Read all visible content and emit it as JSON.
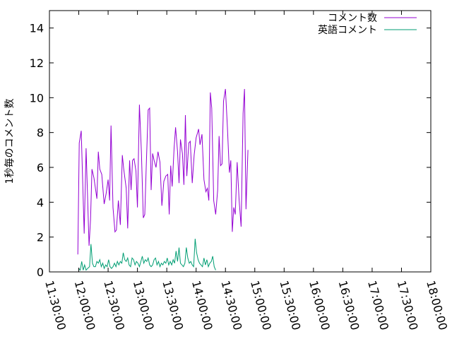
{
  "chart_data": {
    "type": "line",
    "ylabel": "1秒毎のコメント数",
    "xlabel": "",
    "title": "",
    "ylim": [
      0,
      15
    ],
    "xlim": [
      "11:30:00",
      "18:00:00"
    ],
    "yticks": [
      0,
      2,
      4,
      6,
      8,
      10,
      12,
      14
    ],
    "xticks": [
      "11:30:00",
      "12:00:00",
      "12:30:00",
      "13:00:00",
      "13:30:00",
      "14:00:00",
      "14:30:00",
      "15:00:00",
      "15:30:00",
      "16:00:00",
      "16:30:00",
      "17:00:00",
      "17:30:00",
      "18:00:00"
    ],
    "grid": false,
    "legend_position": "top-right",
    "series": [
      {
        "name": "コメント数",
        "color": "#9400d3",
        "points": [
          [
            "11:59:00",
            1.0
          ],
          [
            "12:00:30",
            7.4
          ],
          [
            "12:02:30",
            8.1
          ],
          [
            "12:05:30",
            2.2
          ],
          [
            "12:07:30",
            7.1
          ],
          [
            "12:10:30",
            1.5
          ],
          [
            "12:12:00",
            3.0
          ],
          [
            "12:13:30",
            5.9
          ],
          [
            "12:15:30",
            5.4
          ],
          [
            "12:18:30",
            4.2
          ],
          [
            "12:20:00",
            6.9
          ],
          [
            "12:21:30",
            5.9
          ],
          [
            "12:23:30",
            5.6
          ],
          [
            "12:26:00",
            3.9
          ],
          [
            "12:28:00",
            4.5
          ],
          [
            "12:30:00",
            5.3
          ],
          [
            "12:31:30",
            4.1
          ],
          [
            "12:33:00",
            8.4
          ],
          [
            "12:35:00",
            3.7
          ],
          [
            "12:37:00",
            2.3
          ],
          [
            "12:38:30",
            2.4
          ],
          [
            "12:40:30",
            4.1
          ],
          [
            "12:42:30",
            2.7
          ],
          [
            "12:44:30",
            6.7
          ],
          [
            "12:46:00",
            5.9
          ],
          [
            "12:48:30",
            4.8
          ],
          [
            "12:50:00",
            2.5
          ],
          [
            "12:52:00",
            6.4
          ],
          [
            "12:53:30",
            4.7
          ],
          [
            "12:55:00",
            6.4
          ],
          [
            "12:56:30",
            6.5
          ],
          [
            "12:58:30",
            5.8
          ],
          [
            "13:00:00",
            3.7
          ],
          [
            "13:02:00",
            9.6
          ],
          [
            "13:04:00",
            6.9
          ],
          [
            "13:06:00",
            3.1
          ],
          [
            "13:07:30",
            3.3
          ],
          [
            "13:09:00",
            6.1
          ],
          [
            "13:11:00",
            9.3
          ],
          [
            "13:12:30",
            9.4
          ],
          [
            "13:14:00",
            4.7
          ],
          [
            "13:15:30",
            6.8
          ],
          [
            "13:17:00",
            6.4
          ],
          [
            "13:19:00",
            6.0
          ],
          [
            "13:21:00",
            6.9
          ],
          [
            "13:23:00",
            6.3
          ],
          [
            "13:25:00",
            3.8
          ],
          [
            "13:27:00",
            5.2
          ],
          [
            "13:29:00",
            5.5
          ],
          [
            "13:31:00",
            5.6
          ],
          [
            "13:32:30",
            3.3
          ],
          [
            "13:34:00",
            6.1
          ],
          [
            "13:35:30",
            4.9
          ],
          [
            "13:37:30",
            7.1
          ],
          [
            "13:39:00",
            8.3
          ],
          [
            "13:41:00",
            6.9
          ],
          [
            "13:42:30",
            5.1
          ],
          [
            "13:44:00",
            7.6
          ],
          [
            "13:46:00",
            6.8
          ],
          [
            "13:47:30",
            5.0
          ],
          [
            "13:49:00",
            9.0
          ],
          [
            "13:50:30",
            5.5
          ],
          [
            "13:52:30",
            7.4
          ],
          [
            "13:54:00",
            7.5
          ],
          [
            "13:56:00",
            5.1
          ],
          [
            "13:58:00",
            6.7
          ],
          [
            "14:00:00",
            7.7
          ],
          [
            "14:02:30",
            8.2
          ],
          [
            "14:04:00",
            7.3
          ],
          [
            "14:06:00",
            7.9
          ],
          [
            "14:08:00",
            5.3
          ],
          [
            "14:10:00",
            4.6
          ],
          [
            "14:11:30",
            4.8
          ],
          [
            "14:13:00",
            4.1
          ],
          [
            "14:14:30",
            10.3
          ],
          [
            "14:16:00",
            9.4
          ],
          [
            "14:18:00",
            4.1
          ],
          [
            "14:20:00",
            3.3
          ],
          [
            "14:22:00",
            4.7
          ],
          [
            "14:23:30",
            7.8
          ],
          [
            "14:25:00",
            6.1
          ],
          [
            "14:26:30",
            6.2
          ],
          [
            "14:28:00",
            9.8
          ],
          [
            "14:30:00",
            10.5
          ],
          [
            "14:32:00",
            8.3
          ],
          [
            "14:34:00",
            5.7
          ],
          [
            "14:35:30",
            6.4
          ],
          [
            "14:37:00",
            2.3
          ],
          [
            "14:38:30",
            3.7
          ],
          [
            "14:40:00",
            3.3
          ],
          [
            "14:42:00",
            6.3
          ],
          [
            "14:44:00",
            4.1
          ],
          [
            "14:46:00",
            2.6
          ],
          [
            "14:48:00",
            9.1
          ],
          [
            "14:49:30",
            10.5
          ],
          [
            "14:51:00",
            3.6
          ],
          [
            "14:53:00",
            7.0
          ]
        ]
      },
      {
        "name": "英語コメント",
        "color": "#009e73",
        "points": [
          [
            "12:00:00",
            0.2
          ],
          [
            "12:01:30",
            0.1
          ],
          [
            "12:03:00",
            0.6
          ],
          [
            "12:04:30",
            0.1
          ],
          [
            "12:06:00",
            0.4
          ],
          [
            "12:07:30",
            0.1
          ],
          [
            "12:09:00",
            0.2
          ],
          [
            "12:11:00",
            0.3
          ],
          [
            "12:12:30",
            1.6
          ],
          [
            "12:14:00",
            0.5
          ],
          [
            "12:15:30",
            0.3
          ],
          [
            "12:17:00",
            0.3
          ],
          [
            "12:18:30",
            0.6
          ],
          [
            "12:20:00",
            0.5
          ],
          [
            "12:21:30",
            0.7
          ],
          [
            "12:23:00",
            0.3
          ],
          [
            "12:24:30",
            0.5
          ],
          [
            "12:26:00",
            0.2
          ],
          [
            "12:27:30",
            0.4
          ],
          [
            "12:29:00",
            0.3
          ],
          [
            "12:30:30",
            0.7
          ],
          [
            "12:32:00",
            0.3
          ],
          [
            "12:33:30",
            0.2
          ],
          [
            "12:35:00",
            0.3
          ],
          [
            "12:36:30",
            0.5
          ],
          [
            "12:38:00",
            0.3
          ],
          [
            "12:39:30",
            0.6
          ],
          [
            "12:41:00",
            0.4
          ],
          [
            "12:42:30",
            0.6
          ],
          [
            "12:44:00",
            0.5
          ],
          [
            "12:45:30",
            1.1
          ],
          [
            "12:47:00",
            0.7
          ],
          [
            "12:48:30",
            0.6
          ],
          [
            "12:50:00",
            0.8
          ],
          [
            "12:51:30",
            0.4
          ],
          [
            "12:53:00",
            0.3
          ],
          [
            "12:54:30",
            0.8
          ],
          [
            "12:56:00",
            0.7
          ],
          [
            "12:57:30",
            0.4
          ],
          [
            "12:59:00",
            0.6
          ],
          [
            "13:00:30",
            0.5
          ],
          [
            "13:02:00",
            0.3
          ],
          [
            "13:03:30",
            0.6
          ],
          [
            "13:05:00",
            0.9
          ],
          [
            "13:06:30",
            0.5
          ],
          [
            "13:08:00",
            0.7
          ],
          [
            "13:09:30",
            0.6
          ],
          [
            "13:11:00",
            0.8
          ],
          [
            "13:12:30",
            0.4
          ],
          [
            "13:14:00",
            0.3
          ],
          [
            "13:15:30",
            0.4
          ],
          [
            "13:17:00",
            0.7
          ],
          [
            "13:18:30",
            0.8
          ],
          [
            "13:20:00",
            0.4
          ],
          [
            "13:21:30",
            0.6
          ],
          [
            "13:23:00",
            0.3
          ],
          [
            "13:24:30",
            0.5
          ],
          [
            "13:26:00",
            0.4
          ],
          [
            "13:27:30",
            0.6
          ],
          [
            "13:29:00",
            0.5
          ],
          [
            "13:30:30",
            0.8
          ],
          [
            "13:32:00",
            0.4
          ],
          [
            "13:33:30",
            0.6
          ],
          [
            "13:35:00",
            0.4
          ],
          [
            "13:36:30",
            0.7
          ],
          [
            "13:38:00",
            0.5
          ],
          [
            "13:39:30",
            1.2
          ],
          [
            "13:41:00",
            0.6
          ],
          [
            "13:42:30",
            1.4
          ],
          [
            "13:44:00",
            0.5
          ],
          [
            "13:45:30",
            0.4
          ],
          [
            "13:47:00",
            0.3
          ],
          [
            "13:48:30",
            0.5
          ],
          [
            "13:50:00",
            1.4
          ],
          [
            "13:51:30",
            0.8
          ],
          [
            "13:53:00",
            0.5
          ],
          [
            "13:54:30",
            0.6
          ],
          [
            "13:56:00",
            0.4
          ],
          [
            "13:57:30",
            0.3
          ],
          [
            "13:59:00",
            1.9
          ],
          [
            "14:00:30",
            1.1
          ],
          [
            "14:02:00",
            0.7
          ],
          [
            "14:03:30",
            0.5
          ],
          [
            "14:05:00",
            0.4
          ],
          [
            "14:06:30",
            0.3
          ],
          [
            "14:08:00",
            0.8
          ],
          [
            "14:09:30",
            0.4
          ],
          [
            "14:11:00",
            0.7
          ],
          [
            "14:12:30",
            0.3
          ],
          [
            "14:14:00",
            0.5
          ],
          [
            "14:15:30",
            0.6
          ],
          [
            "14:17:00",
            0.9
          ],
          [
            "14:18:30",
            0.3
          ],
          [
            "14:20:00",
            0.1
          ]
        ]
      }
    ]
  }
}
